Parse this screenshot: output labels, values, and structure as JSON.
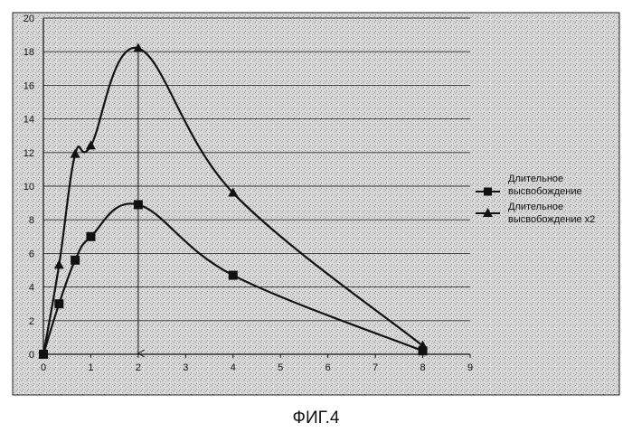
{
  "chart_data": {
    "type": "line",
    "title": "",
    "xlabel": "",
    "ylabel": "",
    "xlim": [
      0,
      9
    ],
    "ylim": [
      0,
      20
    ],
    "x_ticks": [
      "0",
      "1",
      "2",
      "3",
      "4",
      "5",
      "6",
      "7",
      "8",
      "9"
    ],
    "y_ticks": [
      "0",
      "2",
      "4",
      "6",
      "8",
      "10",
      "12",
      "14",
      "16",
      "18",
      "20"
    ],
    "grid": "horizontal",
    "legend_position": "right",
    "series": [
      {
        "name": "Длительное высвобождение",
        "marker": "square",
        "x": [
          0,
          0.33,
          0.67,
          1,
          2,
          4,
          8
        ],
        "y": [
          0,
          3,
          5.6,
          7,
          8.9,
          4.7,
          0.2
        ]
      },
      {
        "name": "Длительное высвобождение x2",
        "marker": "triangle",
        "x": [
          0,
          0.33,
          0.67,
          1,
          2,
          4,
          8
        ],
        "y": [
          0,
          5.3,
          11.9,
          12.4,
          18.2,
          9.6,
          0.5
        ]
      }
    ],
    "annotations": [
      {
        "type": "vertical-arrow",
        "x": 2,
        "y_from": 18.2,
        "y_to": 0
      }
    ]
  },
  "legend": {
    "items": [
      {
        "label_line1": "Длительное",
        "label_line2": "высвобождение"
      },
      {
        "label_line1": "Длительное",
        "label_line2": "высвобождение x2"
      }
    ]
  },
  "caption": "ФИГ.4",
  "colors": {
    "line": "#111111",
    "grid": "#333333",
    "background": "#d6d6d6"
  }
}
